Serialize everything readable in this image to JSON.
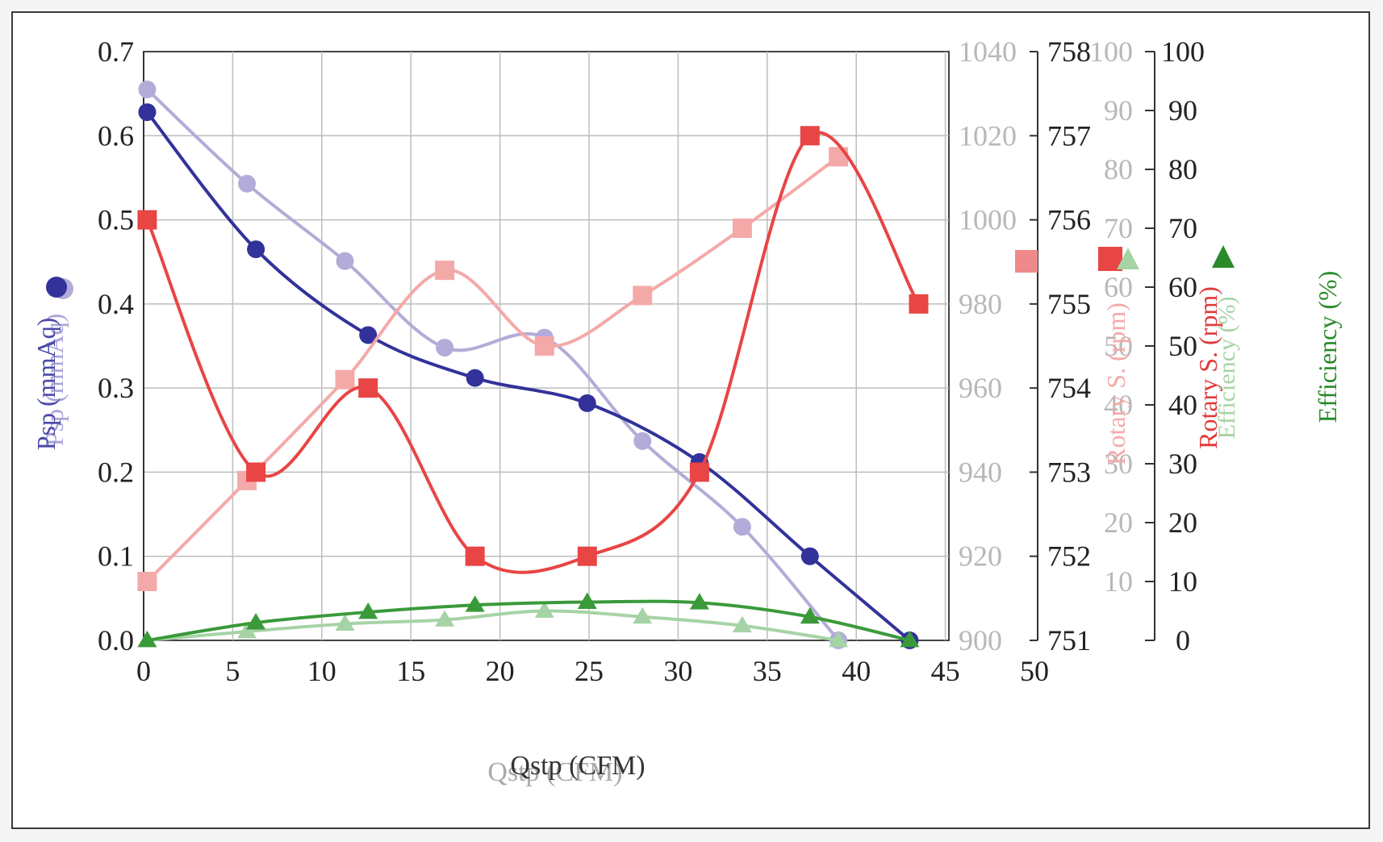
{
  "chart_data": {
    "type": "line",
    "xlabel": "Qstp (CFM)",
    "xlabel_ghost": "Qstp (CFM)",
    "xlim": [
      0,
      50
    ],
    "xticks": [
      "0",
      "5",
      "10",
      "15",
      "20",
      "25",
      "30",
      "35",
      "40",
      "45",
      "50"
    ],
    "axes": {
      "psp": {
        "label": "Psp (mmAq)",
        "label_ghost": "Psp (mmAq)",
        "ylim": [
          0,
          0.7
        ],
        "ticks": [
          "0.0",
          "0.1",
          "0.2",
          "0.3",
          "0.4",
          "0.5",
          "0.6",
          "0.7"
        ],
        "color": "#2e2e8c"
      },
      "rotary_ghost": {
        "label": "Rotary S. (rpm)",
        "ylim": [
          900,
          1040
        ],
        "ticks": [
          "900",
          "920",
          "940",
          "960",
          "980",
          "1000",
          "1020",
          "1040"
        ],
        "color": "#f08a8a"
      },
      "rotary": {
        "label": "Rotary S. (rpm)",
        "ylim": [
          751,
          758
        ],
        "ticks": [
          "751",
          "752",
          "753",
          "754",
          "755",
          "756",
          "757",
          "758"
        ],
        "color": "#e03a3a"
      },
      "efficiency_ghost": {
        "label": "Efficiency (%)",
        "ylim": [
          0,
          100
        ],
        "ticks": [
          "10",
          "20",
          "30",
          "40",
          "50",
          "60",
          "70",
          "80",
          "90",
          "100"
        ],
        "color": "#9cc89c"
      },
      "efficiency": {
        "label": "Efficiency (%)",
        "ylim": [
          0,
          100
        ],
        "ticks": [
          "0",
          "10",
          "20",
          "30",
          "40",
          "50",
          "60",
          "70",
          "80",
          "90",
          "100"
        ],
        "color": "#2a8a2a"
      }
    },
    "series": [
      {
        "axis": "psp",
        "marker": "circle",
        "color": "#b3acd8",
        "x": [
          0.2,
          5.8,
          11.3,
          16.9,
          22.5,
          28.0,
          33.6,
          39.0
        ],
        "y": [
          0.655,
          0.543,
          0.451,
          0.348,
          0.36,
          0.237,
          0.135,
          0.0
        ]
      },
      {
        "axis": "psp",
        "marker": "circle",
        "color": "#32329a",
        "x": [
          0.2,
          6.3,
          12.6,
          18.6,
          24.9,
          31.2,
          37.4,
          43.0
        ],
        "y": [
          0.628,
          0.465,
          0.363,
          0.312,
          0.282,
          0.212,
          0.1,
          0.0
        ]
      },
      {
        "axis": "rotary_ghost",
        "marker": "square",
        "color": "#f4a9a9",
        "x": [
          0.2,
          5.8,
          11.3,
          16.9,
          22.5,
          28.0,
          33.6,
          39.0
        ],
        "y": [
          914,
          938,
          962,
          988,
          970,
          982,
          998,
          1015
        ]
      },
      {
        "axis": "rotary",
        "marker": "square",
        "color": "#e84545",
        "x": [
          0.2,
          6.3,
          12.6,
          18.6,
          24.9,
          31.2,
          37.4,
          43.5
        ],
        "y": [
          756.0,
          753.0,
          754.0,
          752.0,
          752.0,
          753.0,
          757.0,
          755.0
        ]
      },
      {
        "axis": "efficiency",
        "marker": "triangle",
        "color": "#a6d3a6",
        "x": [
          0.2,
          5.8,
          11.3,
          16.9,
          22.5,
          28.0,
          33.6,
          39.0
        ],
        "y": [
          0,
          1.5,
          2.8,
          3.5,
          5.0,
          4.0,
          2.5,
          0
        ]
      },
      {
        "axis": "efficiency",
        "marker": "triangle",
        "color": "#3a9a3a",
        "x": [
          0.2,
          6.3,
          12.6,
          18.6,
          24.9,
          31.2,
          37.4,
          43.0
        ],
        "y": [
          0,
          3.0,
          4.8,
          6.0,
          6.5,
          6.4,
          4.0,
          0
        ]
      }
    ]
  }
}
